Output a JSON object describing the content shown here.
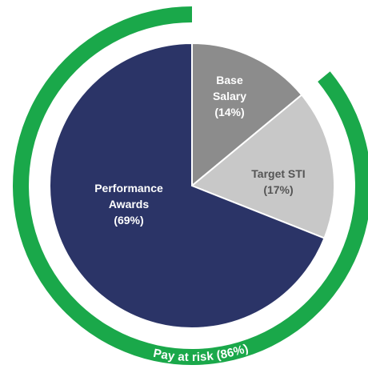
{
  "chart_data": {
    "type": "pie",
    "categories": [
      "Base Salary",
      "Target STI",
      "Performance Awards"
    ],
    "values": [
      14,
      17,
      69
    ],
    "value_labels": [
      "(14%)",
      "(17%)",
      "(69%)"
    ],
    "colors": [
      "#8c8c8c",
      "#c8c8c8",
      "#2b3467"
    ],
    "ring": {
      "label": "Pay at risk (86%)",
      "value": 86,
      "color": "#1aa84a"
    }
  }
}
